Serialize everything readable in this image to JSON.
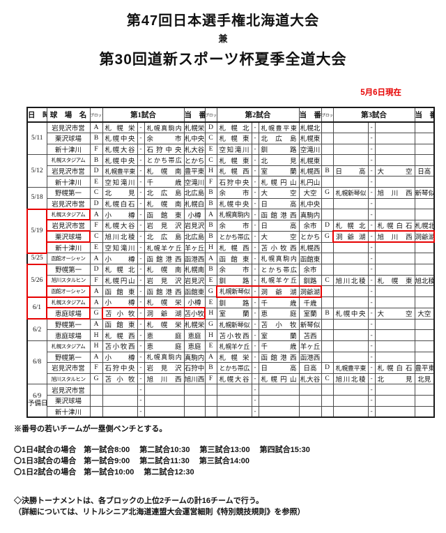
{
  "title": {
    "line1": "第47回日本選手権北海道大会",
    "line2": "兼",
    "line3": "第30回道新スポーツ杯夏季全道大会"
  },
  "as_of": "5月6日現在",
  "accent_red": "#e60000",
  "table": {
    "dash": "-",
    "headers": {
      "date": "日　時",
      "venue": "球　場　名",
      "block": "ブロック",
      "game1": "第1試合",
      "game2": "第2試合",
      "game3": "第3試合",
      "duty": "当　番"
    },
    "days": [
      {
        "date": "5/11",
        "rows": [
          {
            "venue": "岩見沢市営",
            "games": [
              {
                "block": "A",
                "team1": "札幌栄",
                "team2": "札幌真駒内",
                "duty": "札幌栄"
              },
              {
                "block": "D",
                "team1": "札幌北",
                "team2": "札幌豊平東",
                "duty": "札幌北"
              },
              null
            ]
          },
          {
            "venue": "栗沢球場",
            "games": [
              {
                "block": "B",
                "team1": "札幌中央",
                "team2": "余市",
                "duty": "札中央"
              },
              {
                "block": "C",
                "team1": "札幌東",
                "team2": "北広島",
                "duty": "札幌東"
              },
              null
            ]
          },
          {
            "venue": "新十津川",
            "games": [
              {
                "block": "F",
                "team1": "札幌大谷",
                "team2": "石狩中央",
                "duty": "札大谷"
              },
              {
                "block": "E",
                "team1": "空知滝川",
                "team2": "釧路",
                "duty": "空滝川"
              },
              null
            ]
          }
        ]
      },
      {
        "date": "5/12",
        "rows": [
          {
            "venue": "札幌スタジアム",
            "games": [
              {
                "block": "B",
                "team1": "札幌中央",
                "team2": "とかち帯広",
                "duty": "とかち"
              },
              {
                "block": "C",
                "team1": "札幌東",
                "team2": "北見",
                "duty": "札幌東"
              },
              null
            ]
          },
          {
            "venue": "岩見沢市営",
            "games": [
              {
                "block": "D",
                "team1": "札幌豊平東",
                "team2": "札幌南",
                "duty": "豊平東"
              },
              {
                "block": "H",
                "team1": "札幌西",
                "team2": "室蘭",
                "duty": "札幌西"
              },
              {
                "block": "B",
                "team1": "日高",
                "team2": "大空",
                "duty": "日高"
              }
            ]
          },
          {
            "venue": "新十津川",
            "games": [
              {
                "block": "E",
                "team1": "空知滝川",
                "team2": "千歳",
                "duty": "空滝川"
              },
              {
                "block": "F",
                "team1": "石狩中央",
                "team2": "札幌円山",
                "duty": "札円山"
              },
              null
            ]
          }
        ]
      },
      {
        "date": "5/18",
        "rows": [
          {
            "venue": "野幌第一",
            "games": [
              {
                "block": "C",
                "team1": "北見",
                "team2": "北広島",
                "duty": "北広島"
              },
              {
                "block": "B",
                "team1": "余市",
                "team2": "大空",
                "duty": "大空"
              },
              {
                "block": "G",
                "team1": "札幌新琴似",
                "team2": "旭川西",
                "duty": "新琴似"
              }
            ]
          },
          {
            "venue": "岩見沢市営",
            "games": [
              {
                "block": "D",
                "team1": "札幌白石",
                "team2": "札幌南",
                "duty": "札幌白"
              },
              {
                "block": "B",
                "team1": "札幌中央",
                "team2": "日高",
                "duty": "札中央"
              },
              null
            ]
          }
        ]
      },
      {
        "date": "5/19",
        "date_red": true,
        "rows": [
          {
            "venue": "札幌スタジアム",
            "venue_red": true,
            "games": [
              {
                "block": "A",
                "team1": "小樽",
                "team2": "函館東",
                "duty": "小樽"
              },
              {
                "block": "A",
                "team1": "札幌真駒内",
                "team2": "函館港西",
                "duty": "真駒内"
              },
              null
            ]
          },
          {
            "venue": "岩見沢市営",
            "games": [
              {
                "block": "F",
                "team1": "札幌大谷",
                "team2": "岩見沢",
                "duty": "岩見沢"
              },
              {
                "block": "B",
                "team1": "余市",
                "team2": "日高",
                "duty": "余市"
              },
              {
                "block": "D",
                "team1": "札幌北",
                "team2": "札幌白石",
                "duty": "札幌北"
              }
            ]
          },
          {
            "venue": "栗沢球場",
            "venue_red": true,
            "games": [
              {
                "block": "C",
                "team1": "旭川北稜",
                "team2": "北広島",
                "duty": "北広島"
              },
              {
                "block": "B",
                "team1": "とかち帯広",
                "team2": "大空",
                "duty": "とかち"
              },
              {
                "block": "G",
                "team1": "洞爺湖",
                "team2": "旭川西",
                "duty": "洞爺湖",
                "red": true
              }
            ]
          },
          {
            "venue": "新十津川",
            "games": [
              {
                "block": "E",
                "team1": "空知滝川",
                "team2": "札幌羊ケ丘",
                "duty": "羊ヶ丘"
              },
              {
                "block": "H",
                "team1": "札幌西",
                "team2": "苫小牧西",
                "duty": "札幌西"
              },
              null
            ]
          }
        ]
      },
      {
        "date": "5/25",
        "rows": [
          {
            "venue": "函館オーシャン",
            "games": [
              {
                "block": "A",
                "team1": "小樽",
                "team2": "函館港西",
                "duty": "函港西"
              },
              {
                "block": "A",
                "team1": "函館東",
                "team2": "札幌真駒内",
                "duty": "函館東"
              },
              null
            ]
          }
        ]
      },
      {
        "date": "5/26",
        "date_red": true,
        "rows": [
          {
            "venue": "野幌第一",
            "games": [
              {
                "block": "D",
                "team1": "札幌北",
                "team2": "札幌南",
                "duty": "札幌南"
              },
              {
                "block": "B",
                "team1": "余市",
                "team2": "とかち帯広",
                "duty": "余市"
              },
              null
            ]
          },
          {
            "venue": "旭川スタルヒン",
            "games": [
              {
                "block": "F",
                "team1": "札幌円山",
                "team2": "岩見沢",
                "duty": "岩見沢"
              },
              {
                "block": "E",
                "team1": "釧路",
                "team2": "札幌羊ケ丘",
                "duty": "釧路"
              },
              {
                "block": "C",
                "team1": "旭川北稜",
                "team2": "札幌東",
                "duty": "旭北稜"
              }
            ]
          },
          {
            "venue": "函館オーシャン",
            "venue_red": true,
            "games": [
              {
                "block": "A",
                "team1": "函館東",
                "team2": "函館港西",
                "duty": "函館東"
              },
              {
                "block": "G",
                "team1": "札幌新琴似",
                "team2": "洞爺湖",
                "duty": "洞爺湖",
                "red": true
              },
              null
            ]
          }
        ]
      },
      {
        "date": "6/1",
        "date_red": true,
        "rows": [
          {
            "venue": "札幌スタジアム",
            "venue_red": true,
            "games": [
              {
                "block": "A",
                "team1": "小樽",
                "team2": "札幌栄",
                "duty": "小樽"
              },
              {
                "block": "E",
                "team1": "釧路",
                "team2": "千歳",
                "duty": "千歳"
              },
              null
            ]
          },
          {
            "venue": "恵庭球場",
            "venue_red": true,
            "games": [
              {
                "block": "G",
                "team1": "苫小牧",
                "team2": "洞爺湖",
                "duty": "苫小牧",
                "red": true
              },
              {
                "block": "H",
                "team1": "室蘭",
                "team2": "恵庭",
                "duty": "室蘭"
              },
              {
                "block": "B",
                "team1": "札幌中央",
                "team2": "大空",
                "duty": "大空"
              }
            ]
          }
        ]
      },
      {
        "date": "6/2",
        "rows": [
          {
            "venue": "野幌第一",
            "games": [
              {
                "block": "A",
                "team1": "函館東",
                "team2": "札幌栄",
                "duty": "札幌栄"
              },
              {
                "block": "G",
                "team1": "札幌新琴似",
                "team2": "苫小牧",
                "duty": "新琴似"
              },
              null
            ]
          },
          {
            "venue": "恵庭球場",
            "games": [
              {
                "block": "H",
                "team1": "札幌西",
                "team2": "恵庭",
                "duty": "恵庭"
              },
              {
                "block": "H",
                "team1": "苫小牧西",
                "team2": "室蘭",
                "duty": "苫西"
              },
              null
            ]
          }
        ]
      },
      {
        "date": "6/8",
        "rows": [
          {
            "venue": "札幌スタジアム",
            "games": [
              {
                "block": "H",
                "team1": "苫小牧西",
                "team2": "恵庭",
                "duty": "恵庭"
              },
              {
                "block": "E",
                "team1": "札幌羊ケ丘",
                "team2": "千歳",
                "duty": "羊ヶ丘"
              },
              null
            ]
          },
          {
            "venue": "野幌第一",
            "games": [
              {
                "block": "A",
                "team1": "小樽",
                "team2": "札幌真駒内",
                "duty": "真駒内"
              },
              {
                "block": "A",
                "team1": "札幌栄",
                "team2": "函館港西",
                "duty": "函港西"
              },
              null
            ]
          },
          {
            "venue": "岩見沢市営",
            "games": [
              {
                "block": "F",
                "team1": "石狩中央",
                "team2": "岩見沢",
                "duty": "石狩中"
              },
              {
                "block": "B",
                "team1": "とかち帯広",
                "team2": "日高",
                "duty": "日高"
              },
              {
                "block": "D",
                "team1": "札幌豊平東",
                "team2": "札幌白石",
                "duty": "豊平東"
              }
            ]
          },
          {
            "venue": "旭川スタルヒン",
            "games": [
              {
                "block": "G",
                "team1": "苫小牧",
                "team2": "旭川西",
                "duty": "旭川西"
              },
              {
                "block": "F",
                "team1": "札幌大谷",
                "team2": "札幌円山",
                "duty": "札大谷"
              },
              {
                "block": "C",
                "team1": "旭川北稜",
                "team2": "北見",
                "duty": "北見"
              }
            ]
          }
        ]
      },
      {
        "date": "6/9",
        "date2": "予備日",
        "rows": [
          {
            "venue": "岩見沢市営",
            "games": [
              null,
              null,
              null
            ]
          },
          {
            "venue": "栗沢球場",
            "games": [
              null,
              null,
              null
            ]
          },
          {
            "venue": "新十津川",
            "games": [
              null,
              null,
              null
            ]
          }
        ]
      }
    ]
  },
  "notes": {
    "bench": "※番号の若いチームが一塁側ベンチとする。",
    "schedule": [
      "〇1日4試合の場合　第一試合8:00　 第二試合10:30　 第三試合13:00　 第四試合15:30",
      "〇1日3試合の場合　第一試合9:00　 第二試合11:30　 第三試合14:00",
      "〇1日2試合の場合　第一試合10:00　 第二試合12:30"
    ],
    "tournament": [
      "◇決勝トーナメントは、各ブロックの上位2チームの計16チームで行う。",
      "（詳細については、リトルシニア北海道連盟大会運営細則《特別競技規則》を参照）"
    ]
  }
}
